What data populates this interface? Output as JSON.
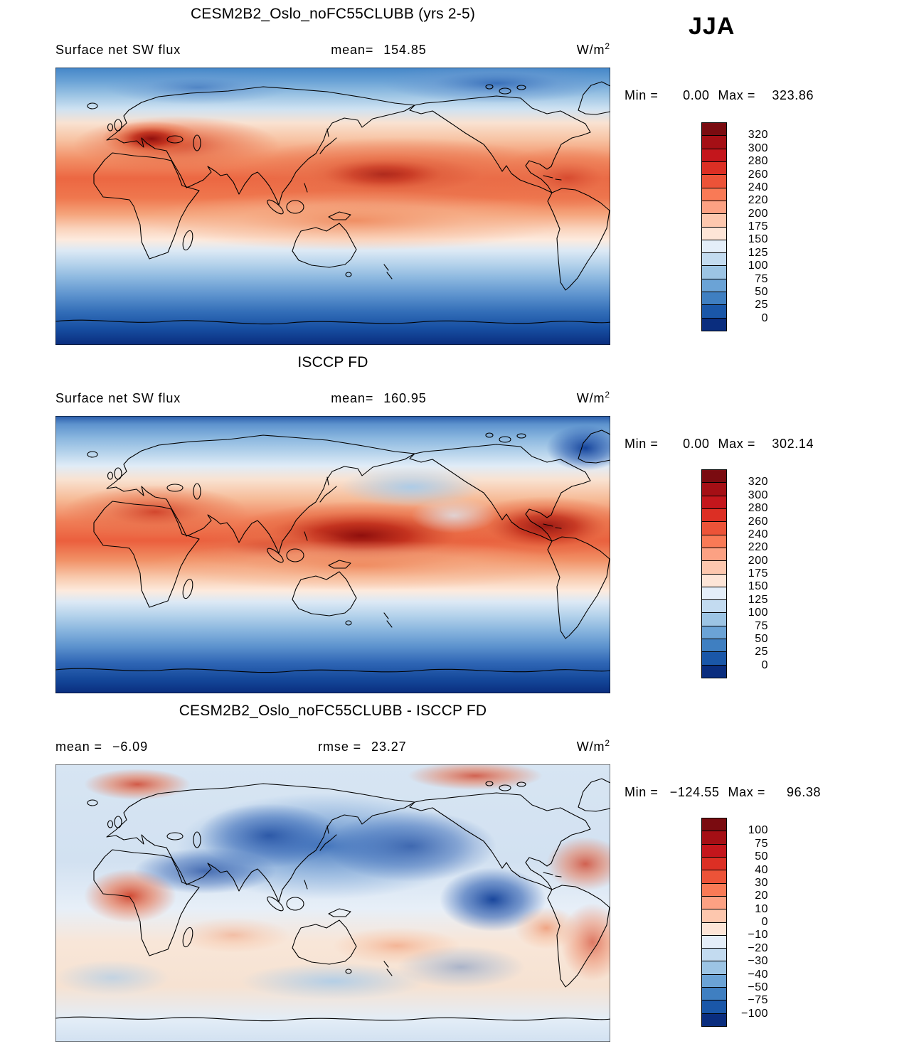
{
  "season_label": "JJA",
  "panels": [
    {
      "title": "CESM2B2_Oslo_noFC55CLUBB (yrs 2-5)",
      "row": {
        "left": "Surface net SW flux",
        "mid_label": "mean=",
        "mid_value": "154.85",
        "units_base": "W/m",
        "units_exp": "2"
      },
      "minmax": {
        "min_label": "Min =",
        "min": "0.00",
        "max_label": "Max =",
        "max": "323.86"
      },
      "colorbar": {
        "labels": [
          "320",
          "300",
          "280",
          "260",
          "240",
          "220",
          "200",
          "175",
          "150",
          "125",
          "100",
          "75",
          "50",
          "25",
          "0"
        ],
        "colors": [
          "#7a0b10",
          "#a50f15",
          "#c4161c",
          "#dc2f24",
          "#ec5338",
          "#f97a56",
          "#fca183",
          "#fdc7ae",
          "#fde5d7",
          "#e4eef9",
          "#c3dbf0",
          "#9cc4e4",
          "#6ba3d6",
          "#3f7fc1",
          "#1a57a8",
          "#0a2d7e"
        ]
      }
    },
    {
      "title": "ISCCP FD",
      "row": {
        "left": "Surface net SW flux",
        "mid_label": "mean=",
        "mid_value": "160.95",
        "units_base": "W/m",
        "units_exp": "2"
      },
      "minmax": {
        "min_label": "Min =",
        "min": "0.00",
        "max_label": "Max =",
        "max": "302.14"
      },
      "colorbar": {
        "labels": [
          "320",
          "300",
          "280",
          "260",
          "240",
          "220",
          "200",
          "175",
          "150",
          "125",
          "100",
          "75",
          "50",
          "25",
          "0"
        ],
        "colors": [
          "#7a0b10",
          "#a50f15",
          "#c4161c",
          "#dc2f24",
          "#ec5338",
          "#f97a56",
          "#fca183",
          "#fdc7ae",
          "#fde5d7",
          "#e4eef9",
          "#c3dbf0",
          "#9cc4e4",
          "#6ba3d6",
          "#3f7fc1",
          "#1a57a8",
          "#0a2d7e"
        ]
      }
    },
    {
      "title": "CESM2B2_Oslo_noFC55CLUBB - ISCCP FD",
      "row": {
        "left_label": "mean =",
        "left_value": "−6.09",
        "mid_label": "rmse =",
        "mid_value": "23.27",
        "units_base": "W/m",
        "units_exp": "2"
      },
      "minmax": {
        "min_label": "Min =",
        "min": "−124.55",
        "max_label": "Max =",
        "max": "96.38"
      },
      "colorbar": {
        "labels": [
          "100",
          "75",
          "50",
          "40",
          "30",
          "20",
          "10",
          "0",
          "−10",
          "−20",
          "−30",
          "−40",
          "−50",
          "−75",
          "−100"
        ],
        "colors": [
          "#7a0b10",
          "#a50f15",
          "#c4161c",
          "#dc2f24",
          "#ec5338",
          "#f97a56",
          "#fca183",
          "#fdc7ae",
          "#fde5d7",
          "#e4eef9",
          "#c3dbf0",
          "#9cc4e4",
          "#6ba3d6",
          "#3f7fc1",
          "#1a57a8",
          "#0a2d7e"
        ]
      }
    }
  ],
  "chart_data": [
    {
      "type": "heatmap",
      "title": "CESM2B2_Oslo_noFC55CLUBB (yrs 2-5)",
      "variable": "Surface net SW flux",
      "season": "JJA",
      "units": "W/m^2",
      "mean": 154.85,
      "min": 0.0,
      "max": 323.86,
      "levels": [
        0,
        25,
        50,
        75,
        100,
        125,
        150,
        175,
        200,
        220,
        240,
        260,
        280,
        300,
        320
      ],
      "projection": "global lat-lon map, contour-filled",
      "palette": "blue (low) to red (high), navy below 0, dark red above 320",
      "notes": "High SW flux (red/orange, 220-320) over subtropics and N-hemisphere summer band incl. Sahara/Mediterranean; low flux (blue to navy, <100) poleward, darkest over Antarctic winter zone"
    },
    {
      "type": "heatmap",
      "title": "ISCCP FD",
      "variable": "Surface net SW flux",
      "season": "JJA",
      "units": "W/m^2",
      "mean": 160.95,
      "min": 0.0,
      "max": 302.14,
      "levels": [
        0,
        25,
        50,
        75,
        100,
        125,
        150,
        175,
        200,
        220,
        240,
        260,
        280,
        300,
        320
      ],
      "projection": "global lat-lon map, contour-filled",
      "palette": "blue (low) to red (high), navy below 0, dark red above 320",
      "notes": "Observed field: strong maxima (260-300) over N Pacific, N Atlantic/N America and N Africa/Middle East; dark blue over Greenland and southern high latitudes"
    },
    {
      "type": "heatmap",
      "title": "CESM2B2_Oslo_noFC55CLUBB - ISCCP FD",
      "variable": "Surface net SW flux difference",
      "season": "JJA",
      "units": "W/m^2",
      "mean": -6.09,
      "rmse": 23.27,
      "min": -124.55,
      "max": 96.38,
      "levels": [
        -100,
        -75,
        -50,
        -40,
        -30,
        -20,
        -10,
        0,
        10,
        20,
        30,
        40,
        50,
        75,
        100
      ],
      "projection": "global lat-lon map, contour-filled",
      "palette": "blue negative, red positive, white near 0",
      "notes": "Large negative bias (-50 to -100) over N Pacific/NE Asia and E tropical Pacific; positive bias (+30 to +100) over W Africa, Arctic fringes and tropical/S Atlantic"
    }
  ]
}
